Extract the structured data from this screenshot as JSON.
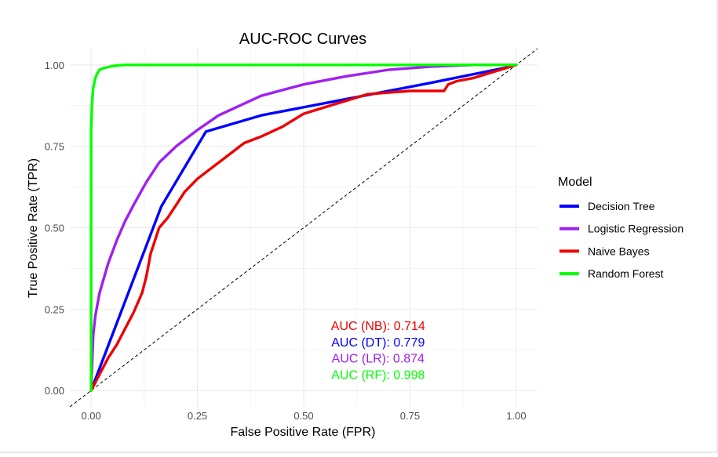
{
  "chart_data": {
    "type": "line",
    "title": "AUC-ROC Curves",
    "xlabel": "False Positive Rate (FPR)",
    "ylabel": "True Positive Rate (TPR)",
    "xlim": [
      -0.05,
      1.05
    ],
    "ylim": [
      -0.05,
      1.05
    ],
    "x_ticks": [
      0,
      0.25,
      0.5,
      0.75,
      1
    ],
    "x_tick_labels": [
      "0.00",
      "0.25",
      "0.50",
      "0.75",
      "1.00"
    ],
    "y_ticks": [
      0,
      0.25,
      0.5,
      0.75,
      1
    ],
    "y_tick_labels": [
      "0.00",
      "0.25",
      "0.50",
      "0.75",
      "1.00"
    ],
    "grid": true,
    "legend": {
      "title": "Model",
      "position": "right"
    },
    "diagonal_reference": {
      "x": [
        -0.05,
        1.05
      ],
      "y": [
        -0.05,
        1.05
      ],
      "style": "dashed",
      "color": "#000000"
    },
    "series": [
      {
        "name": "Decision Tree",
        "color": "#0000ff",
        "x": [
          0,
          0.165,
          0.27,
          0.4,
          0.6,
          0.8,
          0.97,
          1
        ],
        "y": [
          0,
          0.565,
          0.795,
          0.845,
          0.895,
          0.945,
          0.99,
          1
        ]
      },
      {
        "name": "Logistic Regression",
        "color": "#a020f0",
        "x": [
          0,
          0.005,
          0.01,
          0.02,
          0.04,
          0.06,
          0.08,
          0.1,
          0.13,
          0.16,
          0.2,
          0.25,
          0.3,
          0.35,
          0.4,
          0.5,
          0.6,
          0.7,
          0.8,
          0.9,
          1
        ],
        "y": [
          0,
          0.17,
          0.23,
          0.3,
          0.39,
          0.46,
          0.52,
          0.57,
          0.64,
          0.7,
          0.75,
          0.8,
          0.845,
          0.875,
          0.905,
          0.94,
          0.965,
          0.985,
          0.995,
          1,
          1
        ]
      },
      {
        "name": "Naive Bayes",
        "color": "#ee0000",
        "x": [
          0,
          0.02,
          0.04,
          0.06,
          0.08,
          0.1,
          0.12,
          0.13,
          0.14,
          0.15,
          0.16,
          0.18,
          0.2,
          0.22,
          0.25,
          0.28,
          0.32,
          0.36,
          0.4,
          0.45,
          0.5,
          0.55,
          0.6,
          0.65,
          0.7,
          0.75,
          0.8,
          0.83,
          0.84,
          0.86,
          0.9,
          0.95,
          1
        ],
        "y": [
          0,
          0.05,
          0.1,
          0.14,
          0.19,
          0.24,
          0.3,
          0.35,
          0.42,
          0.46,
          0.5,
          0.53,
          0.57,
          0.61,
          0.65,
          0.68,
          0.72,
          0.76,
          0.78,
          0.81,
          0.85,
          0.87,
          0.89,
          0.91,
          0.915,
          0.92,
          0.92,
          0.92,
          0.94,
          0.95,
          0.96,
          0.98,
          1
        ]
      },
      {
        "name": "Random Forest",
        "color": "#00ff00",
        "x": [
          0,
          0,
          0.002,
          0.005,
          0.01,
          0.015,
          0.02,
          0.03,
          0.045,
          0.06,
          0.08,
          0.12,
          0.2,
          1
        ],
        "y": [
          0,
          0.8,
          0.88,
          0.93,
          0.96,
          0.975,
          0.985,
          0.99,
          0.995,
          0.998,
          1,
          1,
          1,
          1
        ]
      }
    ],
    "annotations": [
      {
        "text": "AUC (NB): 0.714",
        "color": "#ee0000",
        "x": 0.675,
        "y": 0.2
      },
      {
        "text": "AUC (DT): 0.779",
        "color": "#0000ff",
        "x": 0.675,
        "y": 0.15
      },
      {
        "text": "AUC (LR): 0.874",
        "color": "#a020f0",
        "x": 0.675,
        "y": 0.1
      },
      {
        "text": "AUC (RF): 0.998",
        "color": "#00ff00",
        "x": 0.675,
        "y": 0.05
      }
    ]
  }
}
